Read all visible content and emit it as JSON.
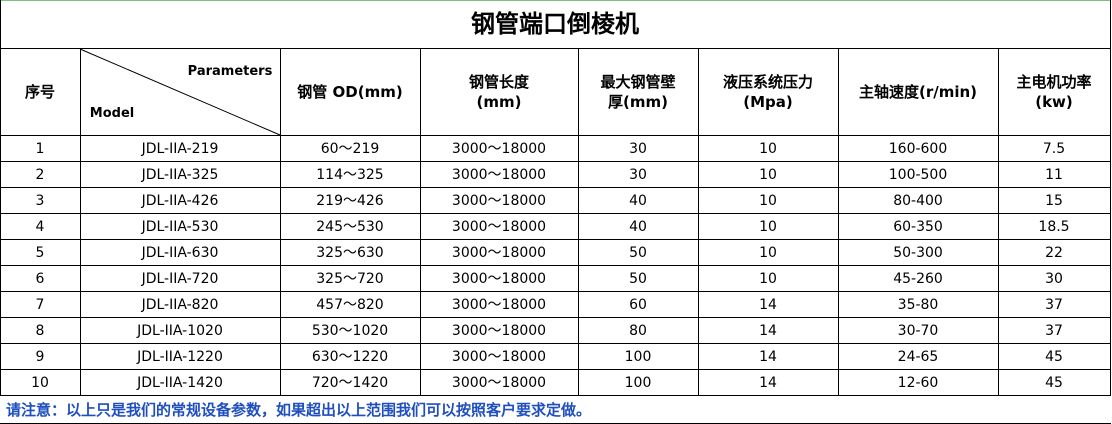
{
  "title": "钢管端口倒棱机",
  "table": {
    "header": {
      "index": "序号",
      "diag_top": "Parameters",
      "diag_bottom": "Model",
      "columns": [
        [
          "钢管 OD(mm)"
        ],
        [
          "钢管长度",
          "(mm)"
        ],
        [
          "最大钢管壁",
          "厚(mm)"
        ],
        [
          "液压系统压力",
          "(Mpa)"
        ],
        [
          "主轴速度(r/min)"
        ],
        [
          "主电机功率",
          "(kw)"
        ]
      ]
    },
    "rows": [
      [
        "1",
        "JDL-IIA-219",
        "60～219",
        "3000～18000",
        "30",
        "10",
        "160-600",
        "7.5"
      ],
      [
        "2",
        "JDL-IIA-325",
        "114～325",
        "3000～18000",
        "30",
        "10",
        "100-500",
        "11"
      ],
      [
        "3",
        "JDL-IIA-426",
        "219～426",
        "3000～18000",
        "40",
        "10",
        "80-400",
        "15"
      ],
      [
        "4",
        "JDL-IIA-530",
        "245～530",
        "3000～18000",
        "40",
        "10",
        "60-350",
        "18.5"
      ],
      [
        "5",
        "JDL-IIA-630",
        "325～630",
        "3000～18000",
        "50",
        "10",
        "50-300",
        "22"
      ],
      [
        "6",
        "JDL-IIA-720",
        "325～720",
        "3000～18000",
        "50",
        "10",
        "45-260",
        "30"
      ],
      [
        "7",
        "JDL-IIA-820",
        "457～820",
        "3000～18000",
        "60",
        "14",
        "35-80",
        "37"
      ],
      [
        "8",
        "JDL-IIA-1020",
        "530～1020",
        "3000～18000",
        "80",
        "14",
        "30-70",
        "37"
      ],
      [
        "9",
        "JDL-IIA-1220",
        "630～1220",
        "3000～18000",
        "100",
        "14",
        "24-65",
        "45"
      ],
      [
        "10",
        "JDL-IIA-1420",
        "720～1420",
        "3000～18000",
        "100",
        "14",
        "12-60",
        "45"
      ]
    ]
  },
  "note": "请注意：以上只是我们的常规设备参数，如果超出以上范围我们可以按照客户要求定做。"
}
